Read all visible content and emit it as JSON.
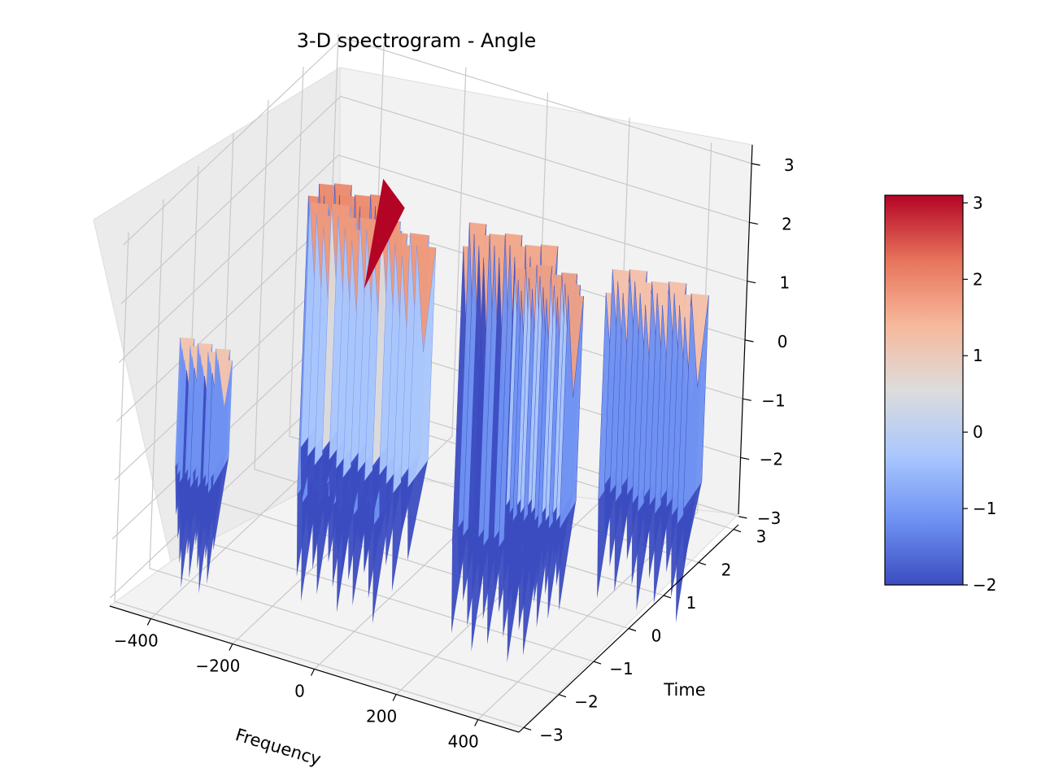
{
  "chart_data": {
    "type": "surface3d",
    "title": "3-D spectrogram - Angle",
    "xlabel": "Frequency",
    "ylabel": "Time",
    "zlabel": "",
    "x_ticks": [
      "−400",
      "−200",
      "0",
      "200",
      "400"
    ],
    "y_ticks": [
      "−3",
      "−2",
      "−1",
      "0",
      "1",
      "2",
      "3"
    ],
    "z_ticks": [
      "−3",
      "−2",
      "−1",
      "0",
      "1",
      "2",
      "3"
    ],
    "xlim": [
      -500,
      500
    ],
    "ylim": [
      -3.14,
      3.14
    ],
    "zlim": [
      -3.14,
      3.14
    ],
    "colormap": "coolwarm",
    "colorbar": {
      "ticks": [
        "−2",
        "−1",
        "0",
        "1",
        "2",
        "3"
      ],
      "range": [
        -2.0,
        3.1
      ],
      "colors": [
        "#3b4cc0",
        "#6f92f3",
        "#aac7fd",
        "#dddcdc",
        "#f7b89c",
        "#e7745b",
        "#b40426"
      ]
    },
    "grid": true,
    "legend": "none",
    "bands": [
      {
        "x_start": -480,
        "x_end": -380,
        "z_top": 0.6,
        "z_bottom": -1.3,
        "color": "#f2c4ae"
      },
      {
        "x_start": -370,
        "x_end": -170,
        "z_top": 2.3,
        "z_bottom": -2.6,
        "color": "#ec8c6e"
      },
      {
        "x_start": -260,
        "x_end": 20,
        "z_top": 2.9,
        "z_bottom": -1.0,
        "color": "#ef9a7c"
      },
      {
        "x_start": -40,
        "x_end": 160,
        "z_top": 1.9,
        "z_bottom": -3.0,
        "color": "#f3a88b"
      },
      {
        "x_start": 160,
        "x_end": 300,
        "z_top": 2.2,
        "z_bottom": -1.6,
        "color": "#eba088"
      },
      {
        "x_start": 260,
        "x_end": 480,
        "z_top": 1.5,
        "z_bottom": -1.9,
        "color": "#f5c1aa"
      }
    ]
  }
}
